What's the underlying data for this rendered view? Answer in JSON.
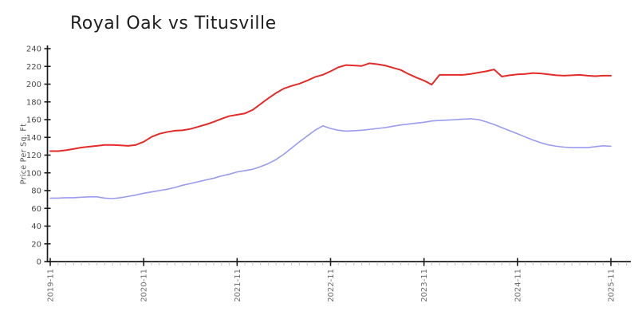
{
  "chart_data": {
    "type": "line",
    "title": "Royal Oak vs Titusville",
    "ylabel": "Price Per Sq. Ft",
    "xlabel": "",
    "ylim": [
      0,
      240
    ],
    "yticks": [
      0,
      20,
      40,
      60,
      80,
      100,
      120,
      140,
      160,
      180,
      200,
      220,
      240
    ],
    "xtick_labels": [
      "2019-11",
      "2020-11",
      "2021-11",
      "2022-11",
      "2023-11",
      "2024-11",
      "2025-11"
    ],
    "x_unit": "month",
    "x_start_label": "2019-11",
    "months_per_major_tick": 12,
    "minor_ticks": "monthly",
    "grid": false,
    "legend_position": "none",
    "axis_color": "#1c1c1c",
    "minor_tick_color": "#cccccc",
    "ytick_label_color": "#4a4a4a",
    "xtick_label_color": "#6e6e6e",
    "series": [
      {
        "name": "Royal Oak",
        "color": "#e32b28",
        "values": [
          124.5,
          124.5,
          125.5,
          127,
          128.5,
          129.5,
          130.5,
          131.5,
          131.5,
          131,
          130.5,
          131.5,
          135,
          140.5,
          144,
          146,
          147.5,
          148,
          149.5,
          152,
          154.5,
          157.5,
          161,
          164,
          165.5,
          167,
          171,
          177.5,
          184,
          190,
          195,
          198,
          200.5,
          204,
          208,
          210.5,
          214.5,
          219,
          221.5,
          221,
          220.5,
          223.5,
          222.5,
          221,
          218.5,
          216,
          211.5,
          207.5,
          204,
          199.5,
          210.5,
          210.5,
          210.5,
          210.5,
          211.5,
          213,
          214.5,
          216.5,
          208.5,
          210,
          211,
          211.5,
          212.5,
          212,
          211,
          210,
          209.5,
          210,
          210.5,
          209.5,
          209,
          209.5,
          209.5
        ]
      },
      {
        "name": "Titusville",
        "color": "#9a9af0",
        "values": [
          71.5,
          71.5,
          72,
          72,
          72.5,
          73,
          73,
          71.5,
          71,
          72,
          73.5,
          75,
          77,
          78.5,
          80,
          81.5,
          83.5,
          86,
          88,
          90,
          92,
          94,
          96.5,
          98.5,
          101,
          102.5,
          104,
          107,
          110.5,
          115,
          121,
          128,
          135,
          141.5,
          148,
          153,
          150,
          148,
          147,
          147.5,
          148,
          149,
          150,
          151,
          152.5,
          154,
          155,
          156,
          157,
          158.5,
          159,
          159.5,
          160,
          160.5,
          161,
          160,
          157.5,
          154.5,
          151,
          147.5,
          144,
          140.5,
          137,
          134,
          131.5,
          130,
          129,
          128.5,
          128.5,
          128.5,
          129.5,
          130.5,
          130
        ]
      }
    ]
  }
}
